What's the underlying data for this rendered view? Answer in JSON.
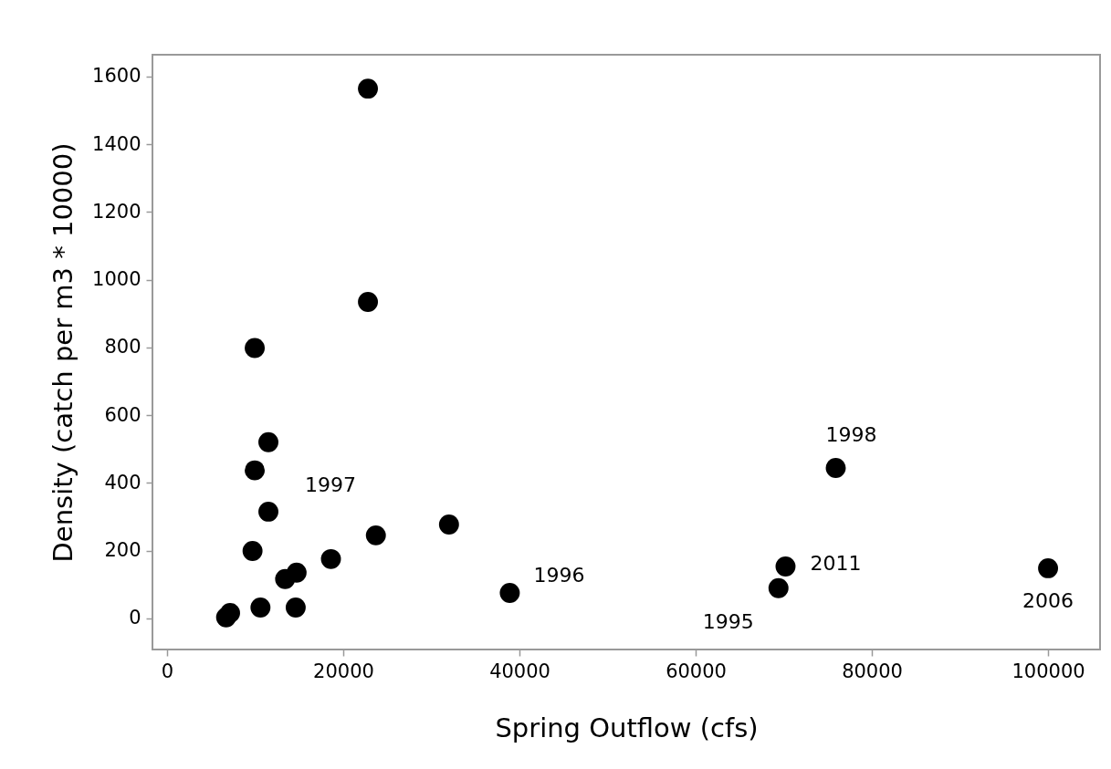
{
  "chart_data": {
    "type": "scatter",
    "xlabel": "Spring Outflow (cfs)",
    "ylabel": "Density (catch per m3 * 10000)",
    "x": [
      22800,
      22800,
      9950,
      11500,
      9950,
      11500,
      9700,
      23700,
      32000,
      18600,
      14700,
      13400,
      10600,
      14600,
      7150,
      6700,
      38900,
      75900,
      70200,
      69400,
      100000
    ],
    "series": [
      {
        "color": "#000000",
        "values": [
          1564,
          934,
          798,
          520,
          437,
          315,
          199,
          245,
          277,
          175,
          135,
          116,
          32,
          32,
          16,
          3,
          75,
          444,
          153,
          89,
          148
        ]
      }
    ],
    "xlim": [
      -1660,
      105900
    ],
    "ylim": [
      -92,
      1664
    ],
    "xticks": [
      0,
      20000,
      40000,
      60000,
      80000,
      100000
    ],
    "yticks": [
      0,
      200,
      400,
      600,
      800,
      1000,
      1200,
      1400,
      1600
    ],
    "grid": false,
    "marker": "circle",
    "annotations": [
      {
        "text": "1997",
        "x": 11500,
        "y": 315
      },
      {
        "text": "1996",
        "x": 38900,
        "y": 75
      },
      {
        "text": "1998",
        "x": 75900,
        "y": 444
      },
      {
        "text": "2011",
        "x": 70200,
        "y": 153
      },
      {
        "text": "1995",
        "x": 69400,
        "y": 89
      },
      {
        "text": "2006",
        "x": 100000,
        "y": 148
      }
    ]
  }
}
